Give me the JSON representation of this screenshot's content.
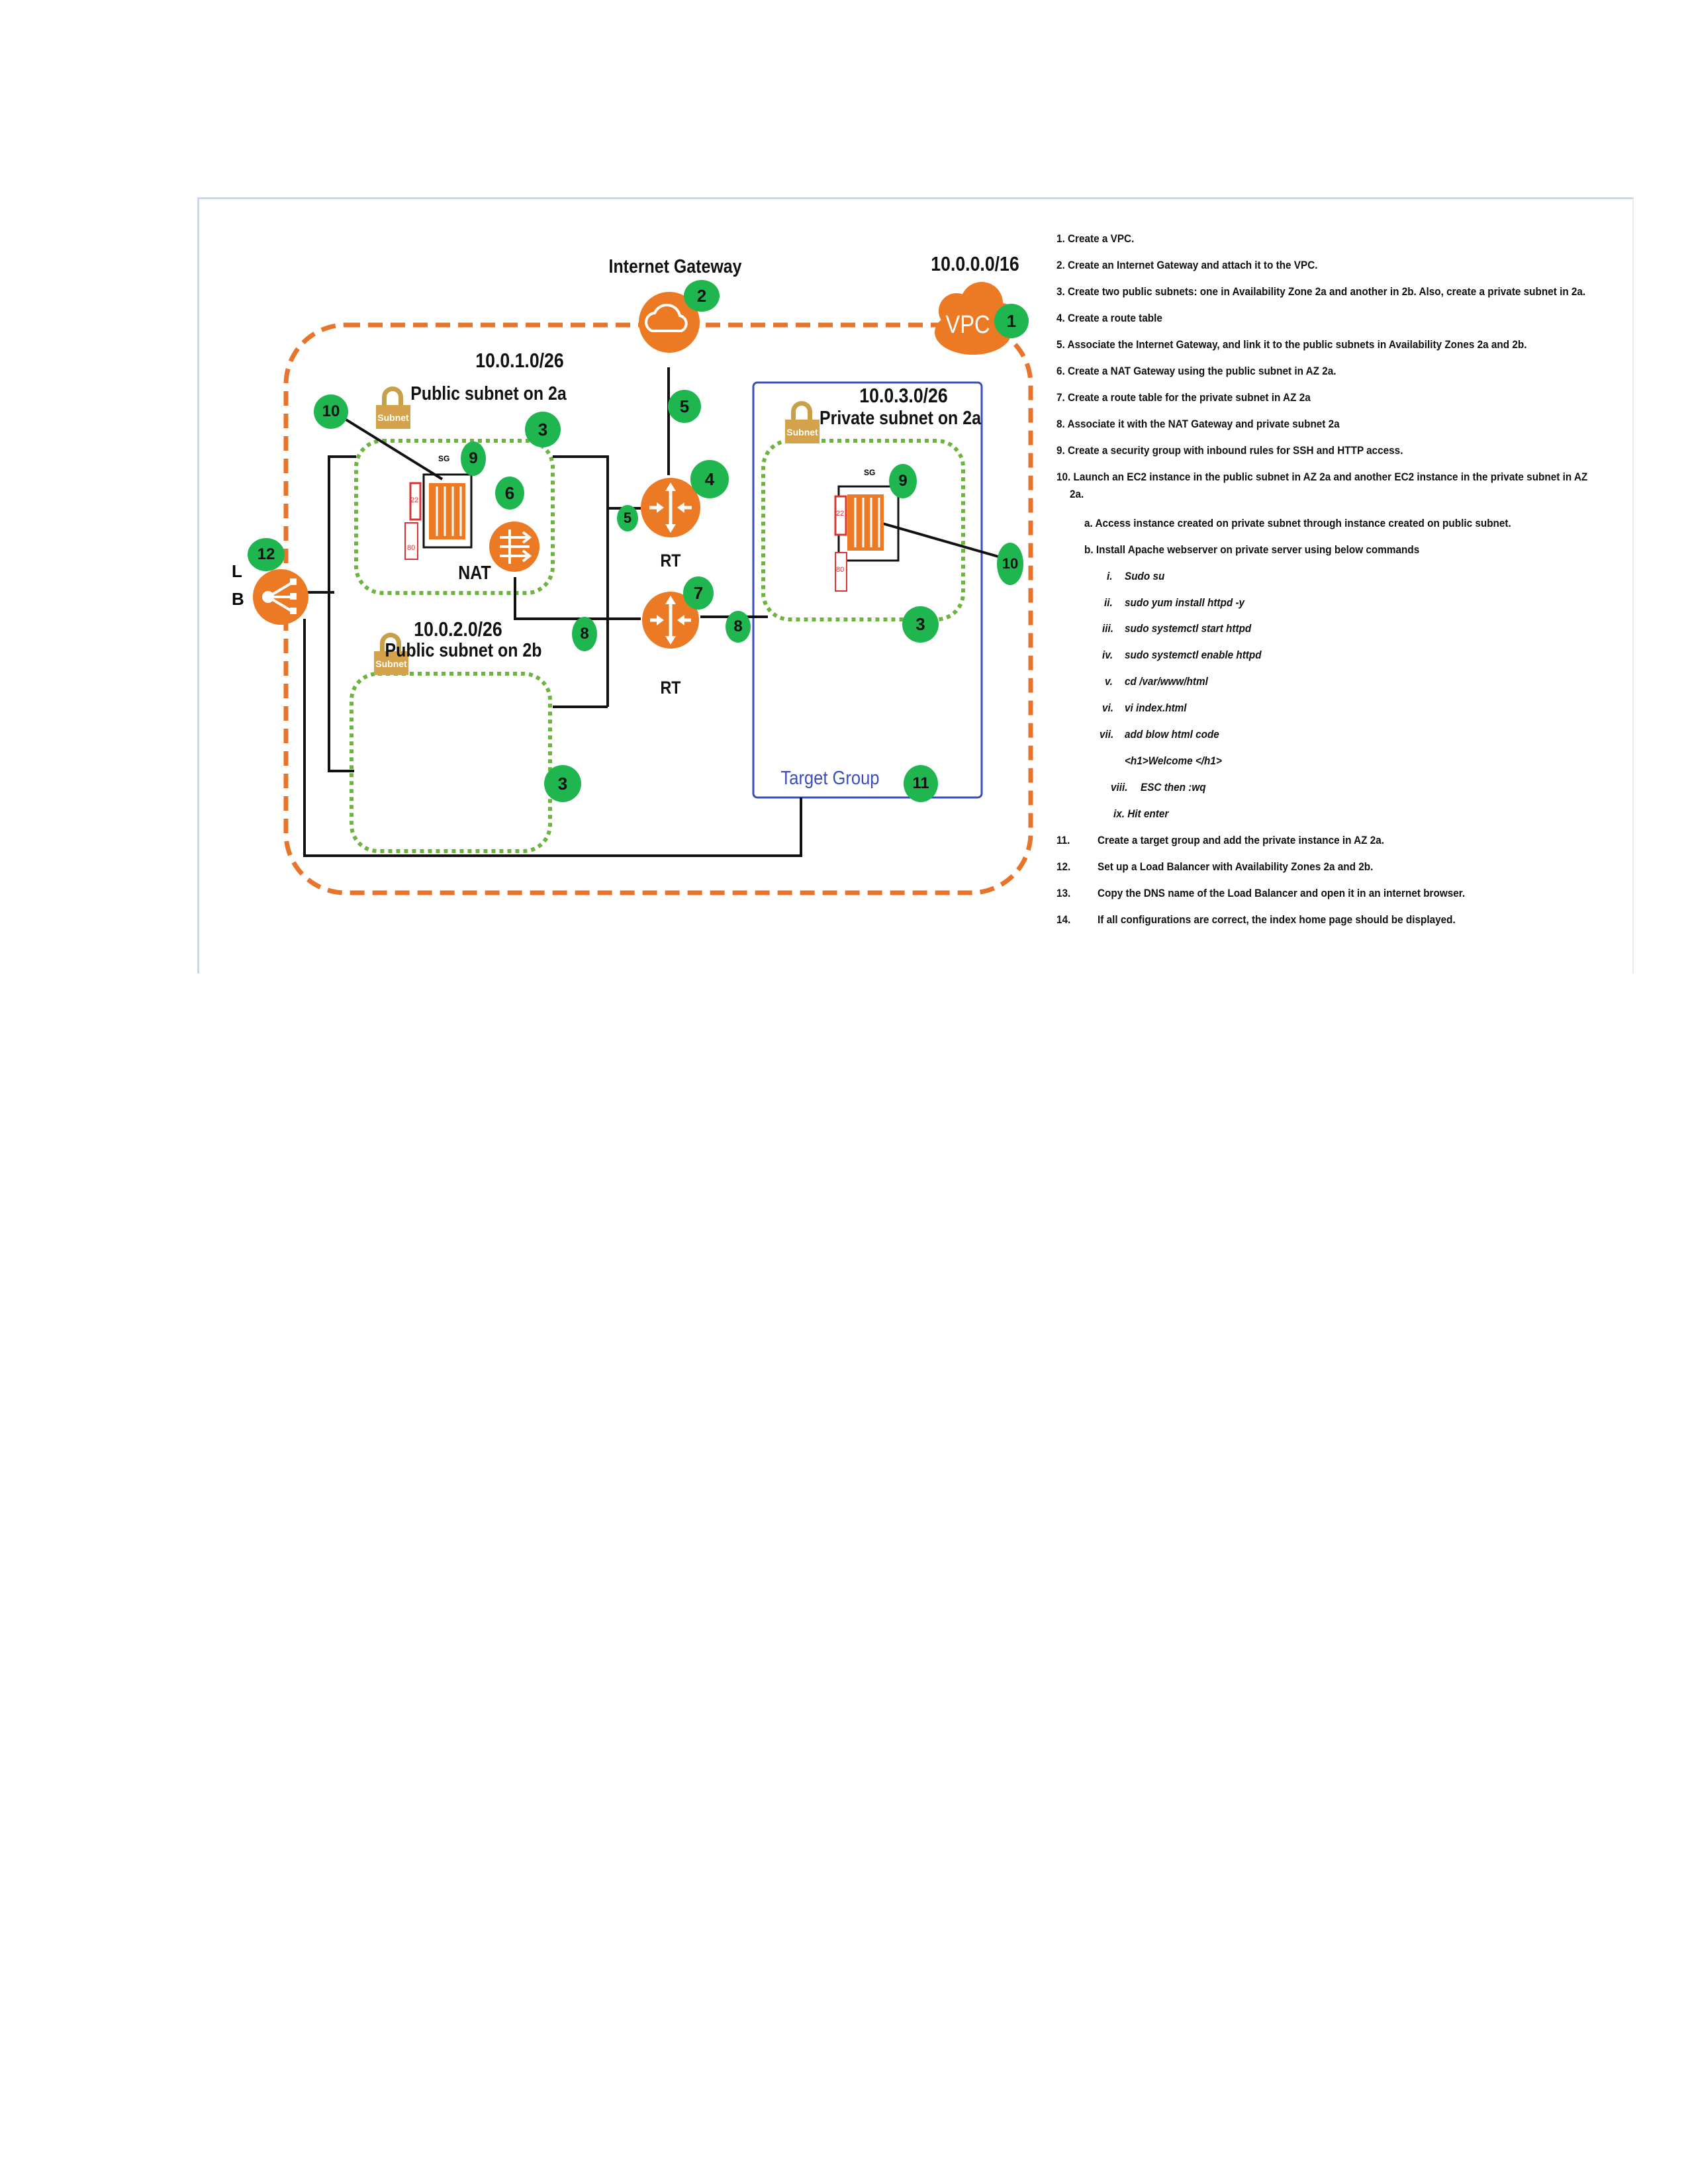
{
  "diagram": {
    "vpc_cidr": "10.0.0.0/16",
    "vpc_label": "VPC",
    "internet_gateway_label": "Internet Gateway",
    "public_subnet_2a": {
      "cidr": "10.0.1.0/26",
      "title": "Public subnet on 2a"
    },
    "public_subnet_2b": {
      "cidr": "10.0.2.0/26",
      "title": "Public subnet on 2b"
    },
    "private_subnet_2a": {
      "cidr": "10.0.3.0/26",
      "title": "Private subnet on 2a"
    },
    "subnet_icon_text": "Subnet",
    "sg_label": "SG",
    "port_22": "22",
    "port_80": "80",
    "nat_label": "NAT",
    "rt_label": "RT",
    "lb_letter_1": "L",
    "lb_letter_2": "B",
    "target_group_label": "Target Group",
    "colors": {
      "vpc_border": "#e8742c",
      "subnet_border": "#6cb33f",
      "badge": "#1fb650",
      "icon_orange": "#ec7a25",
      "target_group": "#3a4dbf",
      "port_box": "#d33"
    }
  },
  "badges": {
    "b1": "1",
    "b2": "2",
    "b3": "3",
    "b4": "4",
    "b5": "5",
    "b6": "6",
    "b7": "7",
    "b8": "8",
    "b9": "9",
    "b10": "10",
    "b11": "11",
    "b12": "12"
  },
  "steps": {
    "s1": "1. Create a VPC.",
    "s2": "2. Create an Internet Gateway and attach it to the VPC.",
    "s3": "3.  Create two public subnets: one in Availability Zone 2a and another in 2b. Also, create a private subnet in 2a.",
    "s4": "4. Create a route table",
    "s5": "5. Associate the Internet Gateway, and link it to the public subnets in Availability Zones 2a and 2b.",
    "s6": "6. Create a NAT Gateway using the public subnet in AZ 2a.",
    "s7": "7. Create a route table for the private subnet in AZ 2a",
    "s8": "8. Associate it with the NAT Gateway and private subnet 2a",
    "s9": "9. Create a security group with inbound rules for SSH and HTTP access.",
    "s10_line1": "10. Launch an EC2 instance in the public subnet in AZ 2a and another EC2 instance in the private subnet in AZ",
    "s10_line2": "2a.",
    "s10a": "a. Access instance created on private subnet through instance created on public subnet.",
    "s10b": "b. Install Apache webserver on private server using below commands",
    "cmd_i_num": "i.",
    "cmd_i": "Sudo  su",
    "cmd_ii_num": "ii.",
    "cmd_ii": "sudo yum install httpd -y",
    "cmd_iii_num": "iii.",
    "cmd_iii": "sudo systemctl start httpd",
    "cmd_iv_num": "iv.",
    "cmd_iv": "sudo systemctl enable httpd",
    "cmd_v_num": "v.",
    "cmd_v": "cd /var/www/html",
    "cmd_vi_num": "vi.",
    "cmd_vi": "vi index.html",
    "cmd_vii_num": "vii.",
    "cmd_vii": "add blow html code",
    "html_code": "<h1>Welcome </h1>",
    "cmd_viii_num": "viii.",
    "cmd_viii": "ESC then :wq",
    "cmd_ix": "ix. Hit enter",
    "s11_num": "11.",
    "s11": "Create a target group and add the private instance in AZ 2a.",
    "s12_num": "12.",
    "s12": "Set up a Load Balancer with Availability Zones 2a and 2b.",
    "s13_num": "13.",
    "s13": "Copy the DNS name of the Load Balancer and open it in an internet browser.",
    "s14_num": "14.",
    "s14": "If all configurations are correct, the index home page should be displayed."
  }
}
